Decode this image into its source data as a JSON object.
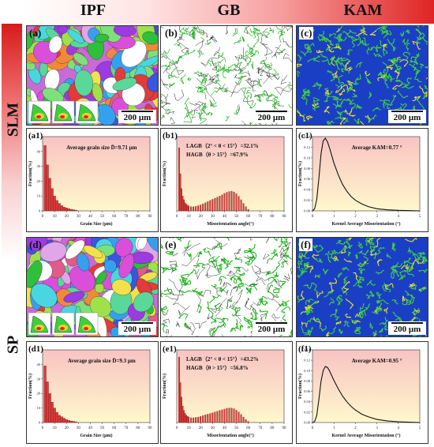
{
  "columns": [
    "IPF",
    "GB",
    "KAM"
  ],
  "rows": [
    "SLM",
    "SP"
  ],
  "colors": {
    "header_red": "#e02424",
    "plot_bg_top": "#f8c3c3",
    "plot_bg_bottom": "#fff8cc",
    "bar_fill": "#d63a3a",
    "boundary_green": "#17b317",
    "kam_blue": "#1b3fc4"
  },
  "maps": [
    {
      "label": "(a)",
      "kind": "ipf",
      "scale": "200 μm"
    },
    {
      "label": "(b)",
      "kind": "gb",
      "scale": "200 μm"
    },
    {
      "label": "(c)",
      "kind": "kam",
      "scale": "200 μm"
    },
    {
      "label": "(d)",
      "kind": "ipf",
      "scale": "200 μm"
    },
    {
      "label": "(e)",
      "kind": "gb",
      "scale": "200 μm"
    },
    {
      "label": "(f)",
      "kind": "kam",
      "scale": "200 μm"
    }
  ],
  "chart_data": [
    {
      "type": "bar",
      "label": "(a1)",
      "annotation": "Average grain size D̄=9.71 μm",
      "xlabel": "Grain Size (μm)",
      "ylabel": "Fraction(%)",
      "xlim": [
        0,
        90
      ],
      "ylim": [
        0,
        50
      ],
      "xticks": [
        0,
        10,
        20,
        30,
        40,
        50,
        60,
        70,
        80,
        90
      ],
      "yticks": [
        0,
        10,
        20,
        30,
        40
      ],
      "bin_centers": [
        2,
        4,
        6,
        8,
        10,
        12,
        14,
        16,
        18,
        20,
        22,
        24,
        26,
        28
      ],
      "values": [
        44,
        31,
        22,
        15,
        10,
        7,
        5,
        3.5,
        2.5,
        2,
        1.5,
        1,
        0.8,
        0.5
      ]
    },
    {
      "type": "bar",
      "label": "(b1)",
      "annotation_lines": [
        "LAGB（2° < θ < 15°）=32.1%",
        "HAGB（θ > 15°）=67.9%"
      ],
      "xlabel": "Misorientation angle(°)",
      "ylabel": "Fraction(%)",
      "xlim": [
        0,
        90
      ],
      "ylim": [
        0,
        20
      ],
      "xticks": [
        0,
        10,
        20,
        30,
        40,
        50,
        60,
        70,
        80,
        90
      ],
      "bin_centers": [
        2,
        3,
        4,
        5,
        6,
        7,
        8,
        9,
        10,
        12,
        14,
        16,
        18,
        20,
        22,
        24,
        26,
        28,
        30,
        32,
        34,
        36,
        38,
        40,
        42,
        44,
        46,
        48,
        50,
        52,
        54,
        56,
        58,
        60
      ],
      "values": [
        17,
        10,
        6,
        4,
        3,
        2.2,
        1.8,
        1.5,
        1.3,
        1.1,
        1.1,
        1.2,
        1.4,
        1.6,
        1.9,
        2.2,
        2.5,
        2.8,
        3.1,
        3.4,
        3.7,
        4.0,
        4.3,
        4.7,
        5.0,
        5.2,
        5.3,
        5.1,
        4.6,
        3.9,
        3.0,
        2.0,
        1.1,
        0.4
      ]
    },
    {
      "type": "line",
      "label": "(c1)",
      "annotation": "Average KAM=0.77 °",
      "xlabel": "Kernel Average Misorientation (°)",
      "ylabel": "Fraction(%)",
      "xlim": [
        0,
        5
      ],
      "ylim": [
        0,
        0.14
      ],
      "xticks": [
        0,
        1,
        2,
        3,
        4,
        5
      ],
      "yticks": [
        0.0,
        0.02,
        0.04,
        0.06,
        0.08,
        0.1,
        0.12,
        0.14
      ],
      "x": [
        0,
        0.1,
        0.2,
        0.3,
        0.4,
        0.5,
        0.6,
        0.7,
        0.8,
        0.9,
        1.0,
        1.2,
        1.4,
        1.6,
        1.8,
        2.0,
        2.3,
        2.6,
        3.0,
        3.5,
        4.0,
        4.5,
        5.0
      ],
      "y": [
        0,
        0.004,
        0.022,
        0.062,
        0.108,
        0.132,
        0.137,
        0.13,
        0.118,
        0.104,
        0.09,
        0.068,
        0.05,
        0.037,
        0.027,
        0.02,
        0.013,
        0.008,
        0.004,
        0.002,
        0.001,
        0.0005,
        0
      ]
    },
    {
      "type": "bar",
      "label": "(d1)",
      "annotation": "Average grain size D̄=9.3 μm",
      "xlabel": "Grain Size (μm)",
      "ylabel": "Fraction(%)",
      "xlim": [
        0,
        90
      ],
      "ylim": [
        0,
        50
      ],
      "xticks": [
        0,
        10,
        20,
        30,
        40,
        50,
        60,
        70,
        80,
        90
      ],
      "yticks": [
        0,
        10,
        20,
        30,
        40
      ],
      "bin_centers": [
        2,
        4,
        6,
        8,
        10,
        12,
        14,
        16,
        18,
        20,
        22,
        24,
        26,
        28
      ],
      "values": [
        39,
        28,
        20,
        14,
        10,
        7,
        5,
        4,
        3,
        2,
        1.5,
        1,
        0.8,
        0.5
      ]
    },
    {
      "type": "bar",
      "label": "(e1)",
      "annotation_lines": [
        "LAGB（2° < θ < 15°）=43.2%",
        "HAGB（θ > 15°）=56.8%"
      ],
      "xlabel": "Misorientation angle(°)",
      "ylabel": "Fraction(%)",
      "xlim": [
        0,
        90
      ],
      "ylim": [
        0,
        20
      ],
      "xticks": [
        0,
        10,
        20,
        30,
        40,
        50,
        60,
        70,
        80,
        90
      ],
      "bin_centers": [
        2,
        3,
        4,
        5,
        6,
        7,
        8,
        9,
        10,
        12,
        14,
        16,
        18,
        20,
        22,
        24,
        26,
        28,
        30,
        32,
        34,
        36,
        38,
        40,
        42,
        44,
        46,
        48,
        50,
        52,
        54,
        56,
        58,
        60
      ],
      "values": [
        18,
        11,
        7,
        4.5,
        3.3,
        2.5,
        2,
        1.7,
        1.5,
        1.3,
        1.3,
        1.4,
        1.5,
        1.7,
        1.9,
        2.1,
        2.3,
        2.5,
        2.7,
        2.9,
        3.1,
        3.3,
        3.5,
        3.7,
        3.9,
        4.0,
        4.0,
        3.8,
        3.4,
        2.9,
        2.2,
        1.5,
        0.8,
        0.3
      ]
    },
    {
      "type": "line",
      "label": "(f1)",
      "annotation": "Average KAM=0.95 °",
      "xlabel": "Kernel Average Misorientation (°)",
      "ylabel": "Fraction(%)",
      "xlim": [
        0,
        5
      ],
      "ylim": [
        0,
        0.14
      ],
      "xticks": [
        0,
        1,
        2,
        3,
        4,
        5
      ],
      "yticks": [
        0.0,
        0.02,
        0.04,
        0.06,
        0.08,
        0.1,
        0.12,
        0.14
      ],
      "x": [
        0,
        0.1,
        0.2,
        0.3,
        0.4,
        0.5,
        0.6,
        0.7,
        0.8,
        0.9,
        1.0,
        1.2,
        1.4,
        1.6,
        1.8,
        2.0,
        2.3,
        2.6,
        3.0,
        3.5,
        4.0,
        4.5,
        5.0
      ],
      "y": [
        0,
        0.002,
        0.014,
        0.045,
        0.08,
        0.1,
        0.108,
        0.106,
        0.099,
        0.09,
        0.081,
        0.065,
        0.051,
        0.04,
        0.031,
        0.024,
        0.016,
        0.011,
        0.006,
        0.003,
        0.0015,
        0.0007,
        0
      ]
    }
  ]
}
